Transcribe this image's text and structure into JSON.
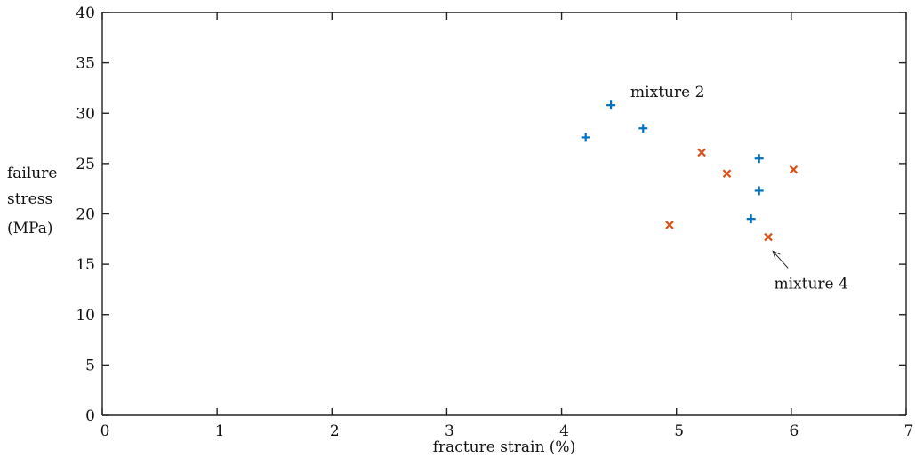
{
  "chart_data": {
    "type": "scatter",
    "title": "",
    "xlabel": "fracture strain (%)",
    "ylabel_lines": [
      "failure",
      "stress",
      "(MPa)"
    ],
    "xlim": [
      0,
      7
    ],
    "ylim": [
      0,
      40
    ],
    "x_ticks": [
      0,
      1,
      2,
      3,
      4,
      5,
      6,
      7
    ],
    "y_ticks": [
      0,
      5,
      10,
      15,
      20,
      25,
      30,
      35,
      40
    ],
    "grid": false,
    "legend": "none",
    "series": [
      {
        "marker": "plus",
        "color": "#0072BD",
        "points": [
          {
            "x": 4.21,
            "y": 27.6
          },
          {
            "x": 4.43,
            "y": 30.8
          },
          {
            "x": 4.71,
            "y": 28.5
          },
          {
            "x": 5.72,
            "y": 25.5
          },
          {
            "x": 5.72,
            "y": 22.3
          },
          {
            "x": 5.65,
            "y": 19.5
          }
        ]
      },
      {
        "marker": "x",
        "color": "#D95319",
        "points": [
          {
            "x": 5.22,
            "y": 26.1
          },
          {
            "x": 5.44,
            "y": 24.0
          },
          {
            "x": 4.94,
            "y": 18.9
          },
          {
            "x": 6.02,
            "y": 24.4
          },
          {
            "x": 5.8,
            "y": 17.7
          }
        ]
      }
    ],
    "annotations": [
      {
        "text": "mixture 2",
        "x": 4.6,
        "y": 31.6
      },
      {
        "text": "mixture 4",
        "x": 5.85,
        "y": 12.6,
        "arrow_to": {
          "x": 5.84,
          "y": 16.3
        }
      }
    ]
  }
}
